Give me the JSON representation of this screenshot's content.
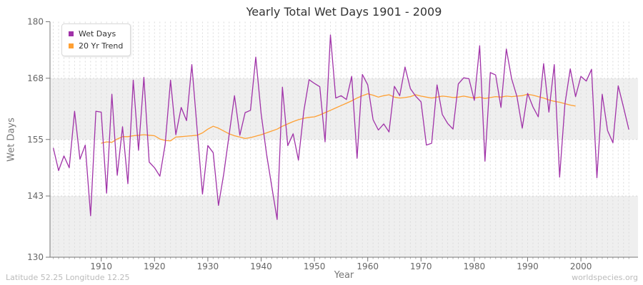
{
  "chart_data": {
    "type": "line",
    "title": "Yearly Total Wet Days 1901 - 2009",
    "xlabel": "Year",
    "ylabel": "Wet Days",
    "xlim": [
      1901,
      2009
    ],
    "ylim": [
      130,
      180
    ],
    "y_ticks": [
      130,
      143,
      155,
      168,
      180
    ],
    "x_ticks": [
      1910,
      1920,
      1930,
      1940,
      1950,
      1960,
      1970,
      1980,
      1990,
      2000
    ],
    "grid": "dashed vertical gridline per year; alternating horizontal gray bands between y ticks",
    "legend_position": "top-left",
    "series": [
      {
        "name": "Wet Days",
        "color": "#A032A8",
        "year_start": 1901,
        "year_end": 2009,
        "values": [
          153.2,
          148.4,
          151.5,
          149.0,
          161.0,
          150.8,
          153.8,
          138.8,
          161.0,
          160.8,
          143.6,
          164.6,
          147.4,
          157.7,
          145.6,
          167.6,
          152.7,
          168.2,
          150.2,
          149.0,
          147.2,
          154.0,
          167.6,
          156.0,
          161.8,
          159.0,
          170.9,
          157.0,
          143.4,
          153.7,
          152.2,
          141.0,
          147.8,
          156.0,
          164.3,
          155.9,
          160.7,
          161.2,
          172.5,
          160.5,
          152.0,
          145.0,
          138.0,
          166.1,
          153.7,
          156.2,
          150.6,
          161.0,
          167.7,
          166.9,
          166.2,
          154.5,
          177.2,
          163.8,
          164.3,
          163.5,
          168.4,
          151.0,
          168.8,
          166.6,
          159.2,
          157.0,
          158.3,
          156.6,
          166.3,
          164.3,
          170.4,
          165.8,
          164.2,
          163.0,
          153.8,
          154.2,
          166.6,
          160.3,
          158.4,
          157.2,
          166.8,
          168.1,
          167.9,
          163.3,
          174.9,
          150.4,
          169.2,
          168.7,
          161.8,
          174.2,
          167.9,
          164.1,
          157.4,
          164.8,
          161.9,
          159.8,
          171.1,
          160.8,
          170.9,
          147.0,
          162.5,
          170.0,
          164.1,
          168.4,
          167.4,
          169.9,
          146.9,
          164.6,
          156.9,
          154.3,
          166.4,
          161.8,
          157.1
        ]
      },
      {
        "name": "20 Yr Trend",
        "color": "#FFA033",
        "year_start": 1910,
        "year_end": 1999,
        "values": [
          154.2,
          154.5,
          154.4,
          155.1,
          155.6,
          155.6,
          155.8,
          155.9,
          156.0,
          155.9,
          155.8,
          155.1,
          154.8,
          154.7,
          155.5,
          155.6,
          155.7,
          155.8,
          155.9,
          156.4,
          157.2,
          157.8,
          157.4,
          156.8,
          156.2,
          155.8,
          155.5,
          155.2,
          155.4,
          155.7,
          156.0,
          156.4,
          156.8,
          157.2,
          157.8,
          158.3,
          158.8,
          159.2,
          159.5,
          159.7,
          159.8,
          160.2,
          160.7,
          161.2,
          161.7,
          162.2,
          162.7,
          163.2,
          163.8,
          164.3,
          164.7,
          164.4,
          164.0,
          164.3,
          164.5,
          164.0,
          163.8,
          163.9,
          164.1,
          164.5,
          164.2,
          164.0,
          163.8,
          164.0,
          164.2,
          164.1,
          163.9,
          164.0,
          164.2,
          164.0,
          163.8,
          164.0,
          163.7,
          163.9,
          164.1,
          164.0,
          164.2,
          164.1,
          164.2,
          164.3,
          164.6,
          164.4,
          164.1,
          163.8,
          163.4,
          163.1,
          162.9,
          162.6,
          162.3,
          162.1
        ]
      }
    ]
  },
  "footer": {
    "left": "Latitude 52.25 Longitude 12.25",
    "right": "worldspecies.org"
  },
  "colors": {
    "band_gray": "#EFEFEF",
    "grid": "#DBDBDB",
    "axis": "#777777",
    "tick_label": "#666666",
    "title": "#333333",
    "footer_text": "#BBBBBB",
    "legend_border": "#D9D9D9"
  }
}
